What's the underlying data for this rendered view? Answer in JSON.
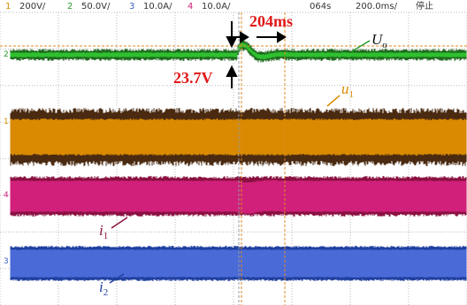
{
  "header": {
    "channels": [
      {
        "number": "1",
        "scale": "200V/"
      },
      {
        "number": "2",
        "scale": "50.0V/"
      },
      {
        "number": "3",
        "scale": "10.0A/"
      },
      {
        "number": "4",
        "scale": "10.0A/"
      }
    ],
    "time": "064s",
    "timebase": "200.0ms/",
    "status": "停止"
  },
  "annotations": {
    "time_delta": "204ms",
    "voltage_delta": "23.7V",
    "uo": {
      "main": "U",
      "sub": "o"
    },
    "u1": {
      "main": "u",
      "sub": "1"
    },
    "i1": {
      "main": "i",
      "sub": "1"
    },
    "i2": {
      "main": "i",
      "sub": "2"
    }
  },
  "channel_markers": [
    "1",
    "2",
    "4",
    "3"
  ]
}
